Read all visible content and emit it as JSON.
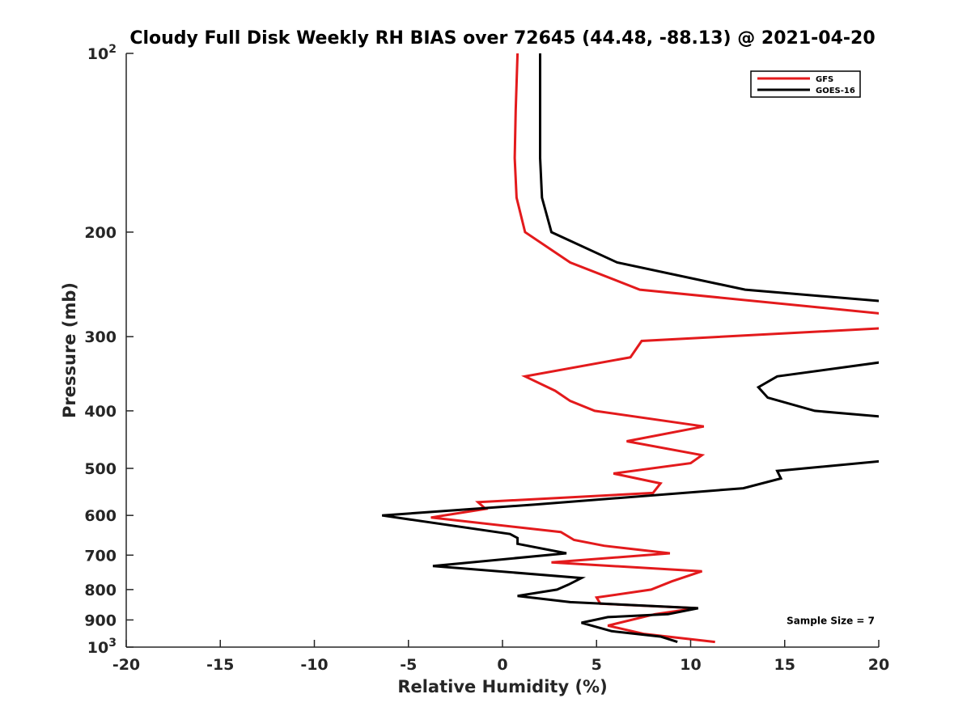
{
  "chart_data": {
    "type": "line",
    "title": "Cloudy Full Disk Weekly RH BIAS over 72645 (44.48, -88.13) @ 2021-04-20",
    "xlabel": "Relative Humidity (%)",
    "ylabel": "Pressure (mb)",
    "xlim": [
      -20,
      20
    ],
    "ylim": [
      100,
      1000
    ],
    "yscale": "log",
    "y_reversed": true,
    "grid": false,
    "legend_position": "top-right",
    "xticks": [
      "-20",
      "-15",
      "-10",
      "-5",
      "0",
      "5",
      "10",
      "15",
      "20"
    ],
    "yticks": [
      {
        "value": 100,
        "base": "10",
        "exp": "2"
      },
      {
        "value": 200,
        "label": "200"
      },
      {
        "value": 300,
        "label": "300"
      },
      {
        "value": 400,
        "label": "400"
      },
      {
        "value": 500,
        "label": "500"
      },
      {
        "value": 600,
        "label": "600"
      },
      {
        "value": 700,
        "label": "700"
      },
      {
        "value": 800,
        "label": "800"
      },
      {
        "value": 900,
        "label": "900"
      },
      {
        "value": 1000,
        "base": "10",
        "exp": "3"
      }
    ],
    "series": [
      {
        "name": "GFS",
        "color": "#e31a1c",
        "points": [
          [
            0.8,
            100
          ],
          [
            0.7,
            125
          ],
          [
            0.65,
            150
          ],
          [
            0.75,
            175
          ],
          [
            1.2,
            200
          ],
          [
            3.6,
            225
          ],
          [
            7.3,
            250
          ],
          [
            20.5,
            275
          ],
          [
            20.5,
            290
          ],
          [
            7.4,
            305
          ],
          [
            6.8,
            325
          ],
          [
            1.2,
            350
          ],
          [
            2.8,
            370
          ],
          [
            3.6,
            385
          ],
          [
            4.9,
            400
          ],
          [
            10.7,
            425
          ],
          [
            6.6,
            450
          ],
          [
            10.6,
            475
          ],
          [
            10.0,
            490
          ],
          [
            5.9,
            510
          ],
          [
            8.4,
            530
          ],
          [
            8.0,
            550
          ],
          [
            -1.3,
            570
          ],
          [
            -0.9,
            585
          ],
          [
            -3.8,
            605
          ],
          [
            3.1,
            640
          ],
          [
            3.8,
            660
          ],
          [
            5.4,
            675
          ],
          [
            8.9,
            695
          ],
          [
            2.6,
            720
          ],
          [
            10.6,
            745
          ],
          [
            9.0,
            775
          ],
          [
            7.9,
            800
          ],
          [
            5.0,
            825
          ],
          [
            5.2,
            845
          ],
          [
            10.3,
            860
          ],
          [
            8.1,
            880
          ],
          [
            5.6,
            920
          ],
          [
            7.5,
            950
          ],
          [
            11.3,
            980
          ]
        ]
      },
      {
        "name": "GOES-16",
        "color": "#000000",
        "points": [
          [
            2.0,
            100
          ],
          [
            2.0,
            125
          ],
          [
            2.0,
            150
          ],
          [
            2.1,
            175
          ],
          [
            2.6,
            200
          ],
          [
            6.1,
            225
          ],
          [
            12.9,
            250
          ],
          [
            20.5,
            262
          ],
          [
            20.5,
            330
          ],
          [
            14.6,
            350
          ],
          [
            13.6,
            365
          ],
          [
            14.1,
            380
          ],
          [
            16.6,
            400
          ],
          [
            20.5,
            410
          ],
          [
            20.5,
            485
          ],
          [
            14.6,
            505
          ],
          [
            14.8,
            520
          ],
          [
            12.8,
            540
          ],
          [
            1.8,
            575
          ],
          [
            -6.4,
            600
          ],
          [
            0.4,
            645
          ],
          [
            0.8,
            655
          ],
          [
            0.8,
            670
          ],
          [
            3.4,
            695
          ],
          [
            -3.7,
            730
          ],
          [
            4.2,
            765
          ],
          [
            3.5,
            785
          ],
          [
            2.9,
            800
          ],
          [
            0.8,
            820
          ],
          [
            3.6,
            840
          ],
          [
            10.4,
            860
          ],
          [
            8.8,
            880
          ],
          [
            5.6,
            890
          ],
          [
            4.2,
            910
          ],
          [
            5.8,
            940
          ],
          [
            8.4,
            960
          ],
          [
            9.3,
            980
          ]
        ]
      }
    ],
    "annotations": [
      {
        "text": "Sample Size = 7",
        "x": 15.1,
        "y": 900
      }
    ]
  }
}
